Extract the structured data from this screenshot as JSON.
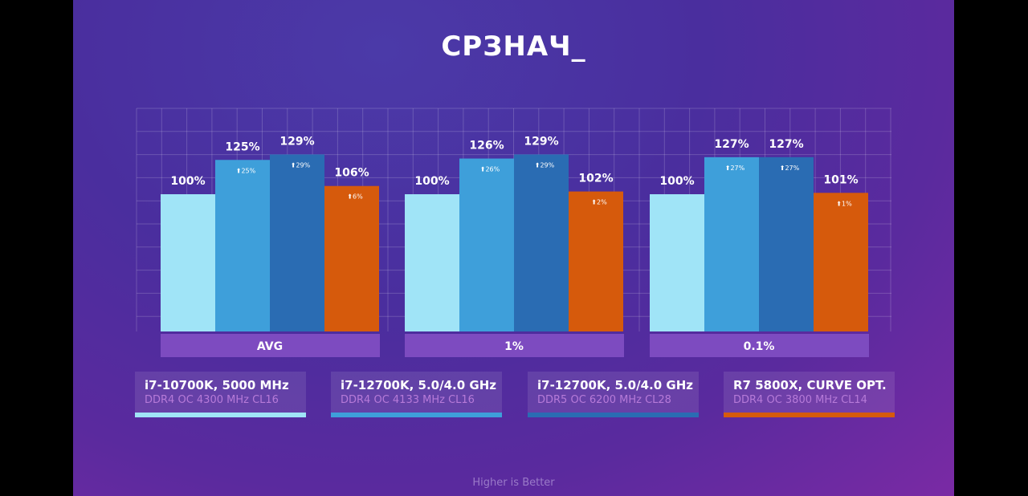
{
  "title": "СРЗНАЧ_",
  "footer": "Higher is Better",
  "chart_data": {
    "type": "bar",
    "categories": [
      "AVG",
      "1%",
      "0.1%"
    ],
    "series": [
      {
        "name": "i7-10700K, 5000 MHz",
        "subtitle": "DDR4 OC 4300 MHz CL16",
        "color": "#a0e4f7",
        "values": [
          100,
          100,
          100
        ],
        "labels": [
          "100%",
          "100%",
          "100%"
        ],
        "deltas": [
          "",
          "",
          ""
        ]
      },
      {
        "name": "i7-12700K, 5.0/4.0 GHz",
        "subtitle": "DDR4 OC 4133 MHz CL16",
        "color": "#3e9fda",
        "values": [
          125,
          126,
          127
        ],
        "labels": [
          "125%",
          "126%",
          "127%"
        ],
        "deltas": [
          "25%",
          "26%",
          "27%"
        ]
      },
      {
        "name": "i7-12700K, 5.0/4.0 GHz",
        "subtitle": "DDR5 OC 6200 MHz CL28",
        "color": "#2a6cb3",
        "values": [
          129,
          129,
          127
        ],
        "labels": [
          "129%",
          "129%",
          "127%"
        ],
        "deltas": [
          "29%",
          "29%",
          "27%"
        ]
      },
      {
        "name": "R7 5800X, CURVE OPT.",
        "subtitle": "DDR4 OC 3800 MHz CL14",
        "color": "#d65a0c",
        "values": [
          106,
          102,
          101
        ],
        "labels": [
          "106%",
          "102%",
          "101%"
        ],
        "deltas": [
          "6%",
          "2%",
          "1%"
        ]
      }
    ],
    "ylim": [
      0,
      164
    ],
    "grid": true,
    "legend": "bottom"
  }
}
